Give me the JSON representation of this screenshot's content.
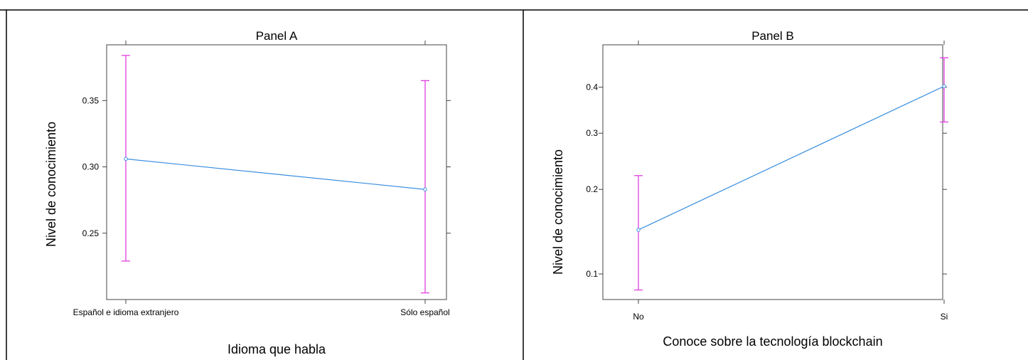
{
  "chart_data": [
    {
      "type": "line",
      "title": "Panel A",
      "xlabel": "Idioma que habla",
      "ylabel": "Nivel de conocimiento",
      "categories": [
        "Español e idioma extranjero",
        "Sólo español"
      ],
      "values": [
        0.306,
        0.283
      ],
      "lower": [
        0.229,
        0.205
      ],
      "upper": [
        0.384,
        0.365
      ],
      "ylim": [
        0.2,
        0.392
      ],
      "yscale": "linear",
      "yticks": [
        0.25,
        0.3,
        0.35
      ],
      "ytick_labels": [
        "0.25",
        "0.30",
        "0.35"
      ],
      "grid": false,
      "colors": {
        "line": "#3a8fe0",
        "errorbar": "#e040e0"
      }
    },
    {
      "type": "line",
      "title": "Panel B",
      "xlabel": "Conoce sobre la tecnología blockchain",
      "ylabel": "Nivel de conocimiento",
      "categories": [
        "No",
        "Si"
      ],
      "values": [
        0.145,
        0.402
      ],
      "lower": [
        0.087,
        0.323
      ],
      "upper": [
        0.222,
        0.469
      ],
      "ylim": [
        0.08,
        0.5
      ],
      "yscale": "logit",
      "yticks": [
        0.1,
        0.2,
        0.3,
        0.4
      ],
      "ytick_labels": [
        "0.1",
        "0.2",
        "0.3",
        "0.4"
      ],
      "grid": false,
      "colors": {
        "line": "#3a8fe0",
        "errorbar": "#e040e0"
      }
    }
  ]
}
